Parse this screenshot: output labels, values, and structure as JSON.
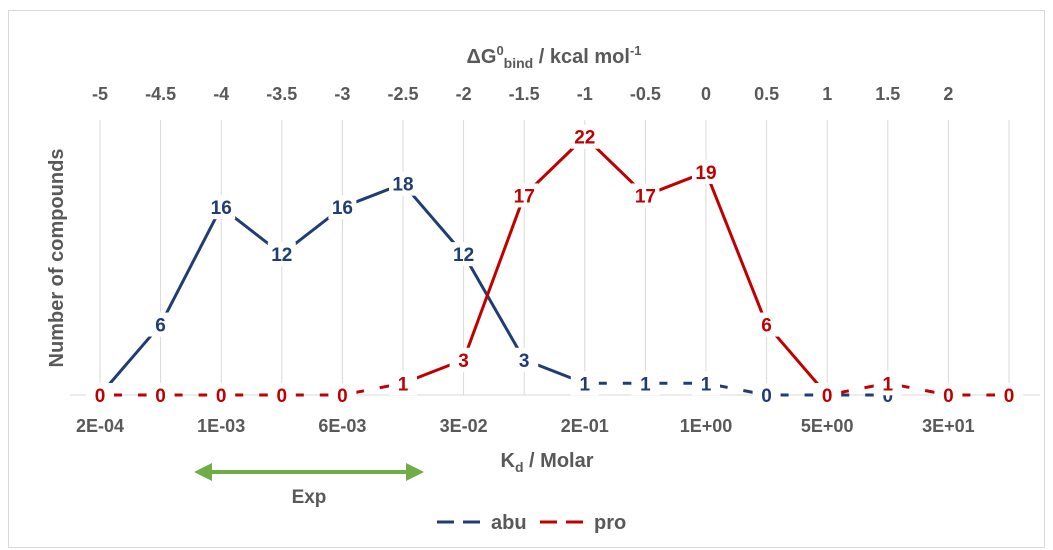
{
  "chart_data": {
    "type": "line",
    "categories": [
      "2E-04",
      "",
      "1E-03",
      "",
      "6E-03",
      "",
      "3E-02",
      "",
      "2E-01",
      "",
      "1E+00",
      "",
      "5E+00",
      "",
      "3E+01",
      ""
    ],
    "x_bottom_ticks": [
      "2E-04",
      "1E-03",
      "6E-03",
      "3E-02",
      "2E-01",
      "1E+00",
      "5E+00",
      "3E+01"
    ],
    "x_top_ticks": [
      "-5",
      "-4.5",
      "-4",
      "-3.5",
      "-3",
      "-2.5",
      "-2",
      "-1.5",
      "-1",
      "-0.5",
      "0",
      "0.5",
      "1",
      "1.5",
      "2"
    ],
    "xlabel_main": "K",
    "xlabel_sub": "d",
    "xlabel_rest": " / Molar",
    "x2label_main": "ΔG",
    "x2label_sup": "0",
    "x2label_sub": "bind",
    "x2label_rest": " / kcal mol",
    "x2label_sup2": "-1",
    "ylabel": "Number of compounds",
    "ylim": [
      0,
      23
    ],
    "series": [
      {
        "name": "abu",
        "color": "#1f3d74",
        "values": [
          0,
          6,
          16,
          12,
          16,
          18,
          12,
          3,
          1,
          1,
          1,
          0,
          0,
          0,
          null,
          null
        ],
        "labels": [
          "",
          "6",
          "16",
          "12",
          "16",
          "18",
          "12",
          "3",
          "1",
          "1",
          "1",
          "0",
          "",
          "0",
          "",
          ""
        ]
      },
      {
        "name": "pro",
        "color": "#c00000",
        "values": [
          0,
          0,
          0,
          0,
          0,
          1,
          3,
          17,
          22,
          17,
          19,
          6,
          0,
          1,
          0,
          0
        ],
        "labels": [
          "0",
          "0",
          "0",
          "0",
          "0",
          "1",
          "3",
          "17",
          "22",
          "17",
          "19",
          "6",
          "0",
          "1",
          "0",
          "0"
        ]
      }
    ],
    "annotation": {
      "text": "Exp",
      "color": "#70ad47"
    },
    "legend_position": "bottom",
    "grid": "vertical"
  }
}
